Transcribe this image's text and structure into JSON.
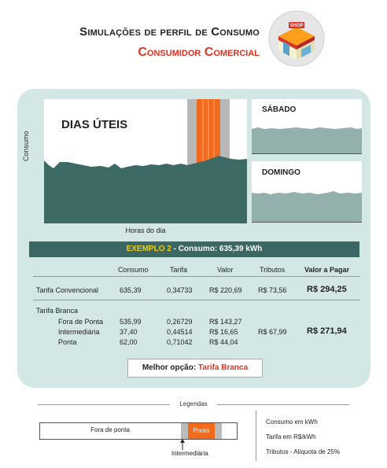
{
  "header": {
    "title": "Simulações de perfil de Consumo",
    "subtitle": "Consumidor Comercial",
    "shop_sign": "SHOP"
  },
  "charts": {
    "main_label": "DIAS ÚTEIS",
    "y_axis": "Consumo",
    "x_axis": "Horas do dia",
    "saturday_label": "SÁBADO",
    "sunday_label": "DOMINGO",
    "main_color": "#3d6a65",
    "weekend_color": "#93b0ad",
    "peak_color": "#f26a1b",
    "intermediate_color": "#b8b8b8"
  },
  "example": {
    "prefix": "EXEMPLO 2",
    "rest": " - Consumo: 635,39 kWh"
  },
  "table": {
    "headers": {
      "consumo": "Consumo",
      "tarifa": "Tarifa",
      "valor": "Valor",
      "tributos": "Tributos",
      "valor_pagar": "Valor a Pagar"
    },
    "convencional": {
      "label": "Tarifa Convencional",
      "consumo": "635,39",
      "tarifa": "0,34733",
      "valor": "R$ 220,69",
      "tributos": "R$ 73,56",
      "total": "R$ 294,25"
    },
    "branca": {
      "label": "Tarifa Branca",
      "tributos": "R$ 67,99",
      "total": "R$ 271,94",
      "rows": [
        {
          "label": "Fora de Ponta",
          "consumo": "535,99",
          "tarifa": "0,26729",
          "valor": "R$ 143,27"
        },
        {
          "label": "Intermediária",
          "consumo": "37,40",
          "tarifa": "0,44514",
          "valor": "R$ 16,65"
        },
        {
          "label": "Ponta",
          "consumo": "62,00",
          "tarifa": "0,71042",
          "valor": "R$ 44,04"
        }
      ]
    }
  },
  "best": {
    "label": "Melhor opção: ",
    "value": "Tarifa Branca"
  },
  "legend": {
    "title": "Legendas",
    "fora_ponta": "Fora de ponta",
    "ponta": "Ponta",
    "intermediaria": "Intermediária",
    "notes": [
      "Consumo em kWh",
      "Tarifa  em R$/kWh",
      "Tributos - Alíquota de 25%"
    ]
  }
}
